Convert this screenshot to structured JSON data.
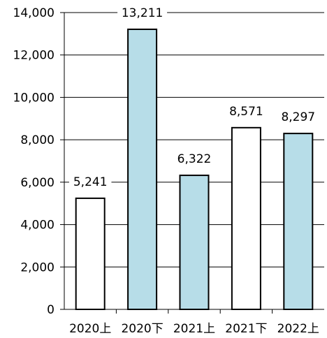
{
  "chart_data": {
    "type": "bar",
    "categories": [
      "2020上",
      "2020下",
      "2021上",
      "2021下",
      "2022上"
    ],
    "values": [
      5241,
      13211,
      6322,
      8571,
      8297
    ],
    "data_labels": [
      "5,241",
      "13,211",
      "6,322",
      "8,571",
      "8,297"
    ],
    "y_ticks": [
      "0",
      "2,000",
      "4,000",
      "6,000",
      "8,000",
      "10,000",
      "12,000",
      "14,000"
    ],
    "ylim": [
      0,
      14000
    ],
    "grid": true,
    "bar_colors": [
      "#ffffff",
      "#b7dde8",
      "#b7dde8",
      "#ffffff",
      "#b7dde8"
    ],
    "bar_outline": "#000000"
  }
}
